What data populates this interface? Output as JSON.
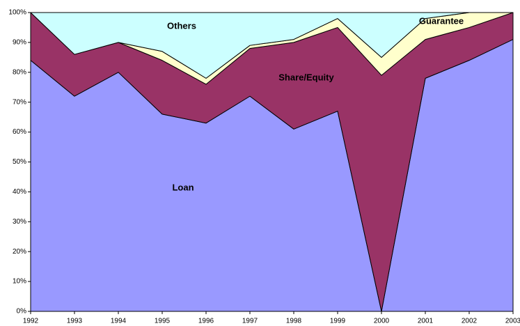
{
  "chart_data": {
    "type": "stacked-area",
    "categories": [
      "1992",
      "1993",
      "1994",
      "1995",
      "1996",
      "1997",
      "1998",
      "1999",
      "2000",
      "2001",
      "2002",
      "2003"
    ],
    "series": [
      {
        "name": "Loan",
        "color": "#9999ff",
        "values": [
          84,
          72,
          80,
          66,
          63,
          72,
          61,
          67,
          0,
          78,
          84,
          91
        ]
      },
      {
        "name": "Share/Equity",
        "color": "#993366",
        "values": [
          16,
          14,
          10,
          18,
          13,
          16,
          29,
          28,
          79,
          13,
          11,
          9
        ]
      },
      {
        "name": "Guarantee",
        "color": "#ffffcc",
        "values": [
          0,
          0,
          0,
          3,
          2,
          1,
          1,
          3,
          6,
          7,
          5,
          0
        ]
      },
      {
        "name": "Others",
        "color": "#ccffff",
        "values": [
          0,
          14,
          10,
          13,
          22,
          11,
          9,
          2,
          15,
          2,
          0,
          0
        ]
      }
    ],
    "ylim": [
      0,
      100
    ],
    "yticks": [
      {
        "value": 0,
        "label": "0%"
      },
      {
        "value": 10,
        "label": "10%"
      },
      {
        "value": 20,
        "label": "20%"
      },
      {
        "value": 30,
        "label": "30%"
      },
      {
        "value": 40,
        "label": "40%"
      },
      {
        "value": 50,
        "label": "50%"
      },
      {
        "value": 60,
        "label": "60%"
      },
      {
        "value": 70,
        "label": "70%"
      },
      {
        "value": 80,
        "label": "80%"
      },
      {
        "value": 90,
        "label": "90%"
      },
      {
        "value": 100,
        "label": "100%"
      }
    ]
  }
}
